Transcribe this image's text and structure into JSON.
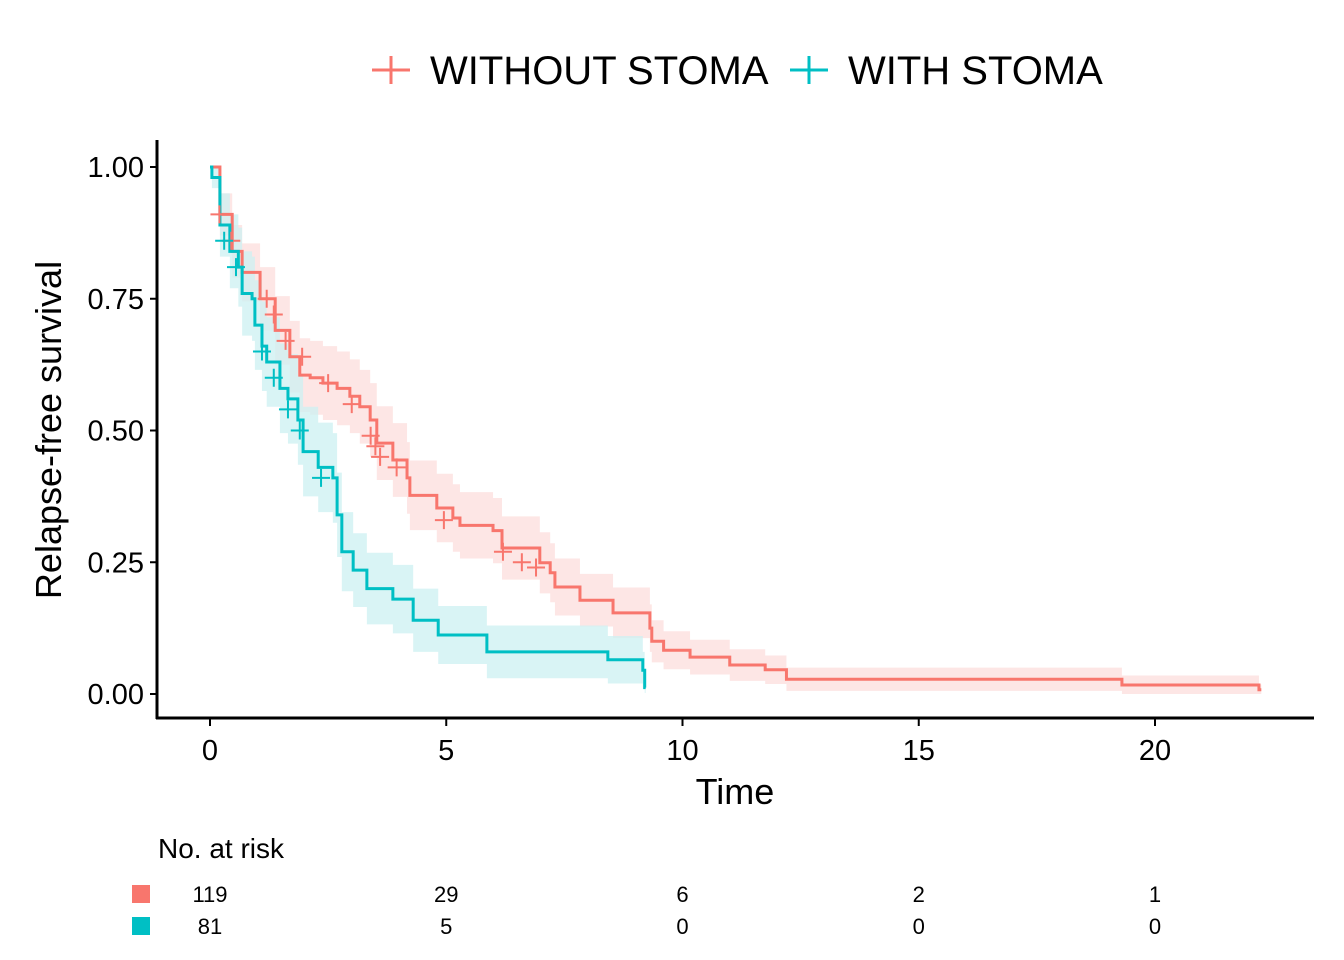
{
  "chart_data": {
    "type": "line",
    "subtype": "kaplan-meier",
    "xlabel": "Time",
    "ylabel": "Relapse-free survival",
    "xlim": [
      -1.1,
      23.0
    ],
    "ylim": [
      -0.045,
      1.05
    ],
    "x_ticks": [
      0,
      5,
      10,
      15,
      20
    ],
    "x_tick_labels": [
      "0",
      "5",
      "10",
      "15",
      "20"
    ],
    "y_ticks": [
      0,
      0.25,
      0.5,
      0.75,
      1.0
    ],
    "y_tick_labels": [
      "0.00",
      "0.25",
      "0.50",
      "0.75",
      "1.00"
    ],
    "grid": false,
    "legend_position": "top",
    "series": [
      {
        "name": "WITHOUT STOMA",
        "color": "#F8766D",
        "band_color": "#FDE3E2",
        "time": [
          0,
          0.21,
          0.47,
          0.68,
          1.06,
          1.38,
          1.69,
          1.9,
          2.12,
          2.39,
          2.69,
          2.96,
          3.17,
          3.39,
          3.53,
          3.87,
          4.17,
          4.23,
          4.8,
          5.14,
          5.29,
          5.99,
          6.18,
          6.98,
          7.2,
          7.3,
          7.83,
          8.53,
          9.31,
          9.35,
          9.6,
          10.16,
          11.0,
          11.75,
          12.2,
          19.3,
          22.2
        ],
        "surv": [
          1.0,
          0.91,
          0.84,
          0.8,
          0.75,
          0.69,
          0.64,
          0.605,
          0.6,
          0.59,
          0.58,
          0.565,
          0.545,
          0.52,
          0.476,
          0.444,
          0.41,
          0.377,
          0.353,
          0.334,
          0.32,
          0.31,
          0.277,
          0.249,
          0.23,
          0.203,
          0.178,
          0.154,
          0.125,
          0.1,
          0.083,
          0.07,
          0.055,
          0.046,
          0.028,
          0.017,
          0.008
        ],
        "ci_halfwidth": [
          0,
          0.04,
          0.05,
          0.055,
          0.06,
          0.065,
          0.068,
          0.07,
          0.07,
          0.07,
          0.07,
          0.07,
          0.07,
          0.07,
          0.07,
          0.07,
          0.068,
          0.066,
          0.065,
          0.064,
          0.063,
          0.062,
          0.06,
          0.058,
          0.056,
          0.054,
          0.05,
          0.048,
          0.045,
          0.04,
          0.036,
          0.033,
          0.03,
          0.027,
          0.022,
          0.018,
          0.01
        ],
        "end_time": 22.25,
        "censor_time": [
          0.2,
          0.45,
          1.2,
          1.35,
          1.6,
          1.95,
          2.5,
          3.0,
          3.4,
          3.5,
          3.6,
          3.95,
          4.95,
          6.2,
          6.6,
          6.9
        ],
        "censor_surv": [
          0.91,
          0.86,
          0.75,
          0.72,
          0.67,
          0.64,
          0.59,
          0.55,
          0.49,
          0.47,
          0.45,
          0.43,
          0.33,
          0.27,
          0.25,
          0.24
        ]
      },
      {
        "name": "WITH STOMA",
        "color": "#00BFC4",
        "band_color": "#CCF0F1",
        "time": [
          0,
          0.04,
          0.21,
          0.42,
          0.6,
          0.68,
          0.89,
          0.95,
          1.1,
          1.2,
          1.48,
          1.65,
          1.86,
          1.97,
          2.29,
          2.6,
          2.69,
          2.79,
          3.03,
          3.32,
          3.87,
          4.3,
          4.83,
          5.86,
          8.42,
          9.16,
          9.2
        ],
        "surv": [
          1.0,
          0.98,
          0.89,
          0.84,
          0.81,
          0.76,
          0.75,
          0.7,
          0.66,
          0.63,
          0.58,
          0.56,
          0.52,
          0.46,
          0.43,
          0.41,
          0.34,
          0.27,
          0.235,
          0.2,
          0.18,
          0.14,
          0.112,
          0.08,
          0.065,
          0.045,
          0.012
        ],
        "ci_halfwidth": [
          0,
          0.02,
          0.06,
          0.07,
          0.075,
          0.08,
          0.08,
          0.085,
          0.085,
          0.085,
          0.085,
          0.085,
          0.085,
          0.085,
          0.085,
          0.085,
          0.08,
          0.075,
          0.07,
          0.068,
          0.065,
          0.06,
          0.055,
          0.05,
          0.045,
          0.035,
          0.01
        ],
        "end_time": 9.22,
        "censor_time": [
          0.3,
          0.55,
          1.1,
          1.35,
          1.65,
          1.9,
          2.35
        ],
        "censor_surv": [
          0.86,
          0.81,
          0.65,
          0.6,
          0.54,
          0.5,
          0.41
        ]
      }
    ],
    "risk_table": {
      "title": "No. at risk",
      "times": [
        0,
        5,
        10,
        15,
        20
      ],
      "rows": [
        {
          "name": "WITHOUT STOMA",
          "color": "#F8766D",
          "values": [
            "119",
            "29",
            "6",
            "2",
            "1"
          ]
        },
        {
          "name": "WITH STOMA",
          "color": "#00BFC4",
          "values": [
            "81",
            "5",
            "0",
            "0",
            "0"
          ]
        }
      ]
    }
  }
}
